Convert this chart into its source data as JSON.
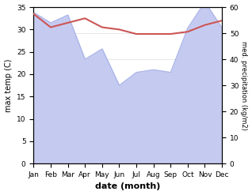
{
  "months": [
    "Jan",
    "Feb",
    "Mar",
    "Apr",
    "May",
    "Jun",
    "Jul",
    "Aug",
    "Sep",
    "Oct",
    "Nov",
    "Dec"
  ],
  "month_x": [
    0,
    1,
    2,
    3,
    4,
    5,
    6,
    7,
    8,
    9,
    10,
    11
  ],
  "temp_max": [
    33.5,
    30.5,
    31.5,
    32.5,
    30.5,
    30.0,
    29.0,
    29.0,
    29.0,
    29.5,
    31.0,
    32.0
  ],
  "precip": [
    58.0,
    54.0,
    57.0,
    40.0,
    44.0,
    30.0,
    35.0,
    36.0,
    35.0,
    52.0,
    62.0,
    52.0
  ],
  "temp_color": "#cc5555",
  "precip_fill_color": "#c5cbf0",
  "precip_line_color": "#aab4e8",
  "ylabel_left": "max temp (C)",
  "ylabel_right": "med. precipitation (kg/m2)",
  "xlabel": "date (month)",
  "ylim_left": [
    0,
    35
  ],
  "ylim_right": [
    0,
    60
  ],
  "yticks_left": [
    0,
    5,
    10,
    15,
    20,
    25,
    30,
    35
  ],
  "yticks_right": [
    0,
    10,
    20,
    30,
    40,
    50,
    60
  ],
  "bg_color": "#ffffff"
}
